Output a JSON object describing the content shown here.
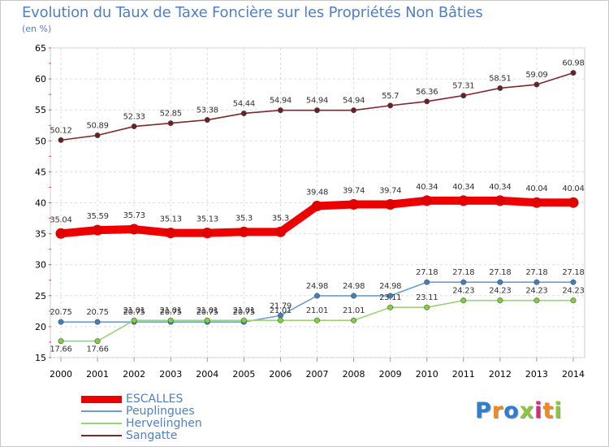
{
  "title": "Evolution du Taux de Taxe Foncière sur les Propriétés Non Bâties",
  "subtitle": "(en %)",
  "logo": {
    "text": "Proxiti",
    "colors": [
      "#2f7fd1",
      "#f08a1c",
      "#2f7fd1",
      "#8cc63f",
      "#d02e7d",
      "#f08a1c",
      "#8cc63f"
    ]
  },
  "chart_data": {
    "type": "line",
    "title": "Evolution du Taux de Taxe Foncière sur les Propriétés Non Bâties",
    "ylabel": "(en %)",
    "xlabel": "",
    "ylim": [
      15,
      65
    ],
    "yticks": [
      15,
      20,
      25,
      30,
      35,
      40,
      45,
      50,
      55,
      60,
      65
    ],
    "categories": [
      "2000",
      "2001",
      "2002",
      "2003",
      "2004",
      "2005",
      "2006",
      "2007",
      "2008",
      "2009",
      "2010",
      "2011",
      "2012",
      "2013",
      "2014"
    ],
    "grid": true,
    "legend_position": "bottom-left",
    "series": [
      {
        "name": "Sangatte",
        "color": "#7a2a2f",
        "marker_color": "#6b1f24",
        "labels": [
          "50.12",
          "50.89",
          "52.33",
          "52.85",
          "53.38",
          "54.44",
          "54.94",
          "54.94",
          "54.94",
          "55.7",
          "56.36",
          "57.31",
          "58.51",
          "59.09",
          "60.98"
        ],
        "values": [
          50.12,
          50.89,
          52.33,
          52.85,
          53.38,
          54.44,
          54.94,
          54.94,
          54.94,
          55.7,
          56.36,
          57.31,
          58.51,
          59.09,
          60.98
        ]
      },
      {
        "name": "ESCALLES",
        "color": "#ee0000",
        "marker_color": "#e00000",
        "labels": [
          "35.04",
          "35.59",
          "35.73",
          "35.13",
          "35.13",
          "35.3",
          "35.3",
          "39.48",
          "39.74",
          "39.74",
          "40.34",
          "40.34",
          "40.34",
          "40.04",
          "40.04"
        ],
        "values": [
          35.04,
          35.59,
          35.73,
          35.13,
          35.13,
          35.3,
          35.3,
          39.48,
          39.74,
          39.74,
          40.34,
          40.34,
          40.34,
          40.04,
          40.04
        ]
      },
      {
        "name": "Peuplingues",
        "color": "#6a9fd0",
        "marker_color": "#3f7fbf",
        "labels": [
          "20.75",
          "20.75",
          "20.75",
          "20.75",
          "20.75",
          "20.75",
          "21.79",
          "24.98",
          "24.98",
          "24.98",
          "27.18",
          "27.18",
          "27.18",
          "27.18",
          "27.18"
        ],
        "values": [
          20.75,
          20.75,
          20.75,
          20.75,
          20.75,
          20.75,
          21.79,
          24.98,
          24.98,
          24.98,
          27.18,
          27.18,
          27.18,
          27.18,
          27.18
        ]
      },
      {
        "name": "Hervelinghen",
        "color": "#9ad37a",
        "marker_color": "#7fcf3f",
        "labels": [
          "17.66",
          "17.66",
          "21.01",
          "21.01",
          "21.01",
          "21.01",
          "21.01",
          "21.01",
          "21.01",
          "23.11",
          "23.11",
          "24.23",
          "24.23",
          "24.23",
          "24.23"
        ],
        "values": [
          17.66,
          17.66,
          21.01,
          21.01,
          21.01,
          21.01,
          21.01,
          21.01,
          21.01,
          23.11,
          23.11,
          24.23,
          24.23,
          24.23,
          24.23
        ]
      }
    ],
    "legend": [
      {
        "name": "ESCALLES",
        "color": "#ee0000",
        "weight": "thick"
      },
      {
        "name": "Peuplingues",
        "color": "#6a9fd0",
        "weight": "thin"
      },
      {
        "name": "Hervelinghen",
        "color": "#9ad37a",
        "weight": "thin"
      },
      {
        "name": "Sangatte",
        "color": "#7a2a2f",
        "weight": "thin"
      }
    ]
  }
}
